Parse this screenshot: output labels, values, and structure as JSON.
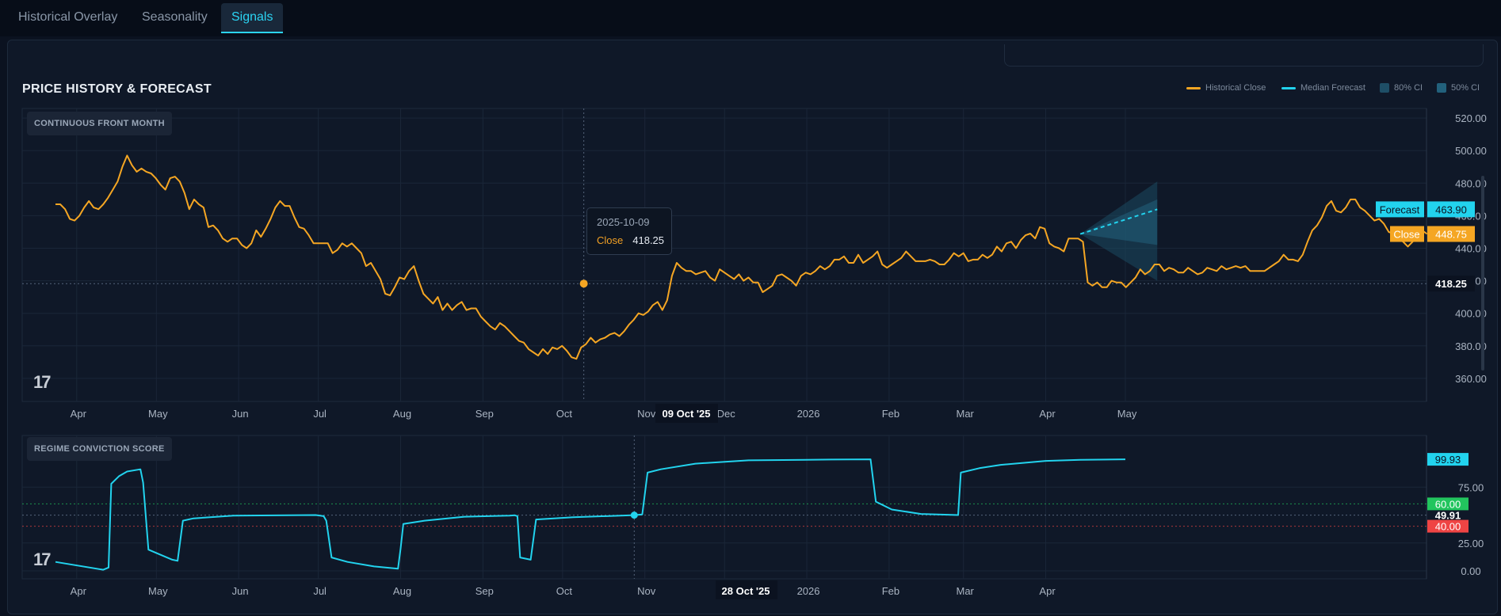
{
  "tabs": [
    {
      "label": "Historical Overlay",
      "active": false
    },
    {
      "label": "Seasonality",
      "active": false
    },
    {
      "label": "Signals",
      "active": true
    }
  ],
  "panel_title": "PRICE HISTORY & FORECAST",
  "legend": [
    {
      "label": "Historical Close",
      "color": "#f5a623",
      "kind": "line"
    },
    {
      "label": "Median Forecast",
      "color": "#22d3ee",
      "kind": "line"
    },
    {
      "label": "80% CI",
      "color": "#1e4e66",
      "kind": "box"
    },
    {
      "label": "50% CI",
      "color": "#22617c",
      "kind": "box"
    }
  ],
  "tooltip": {
    "date": "2025-10-09",
    "label": "Close",
    "value": "418.25"
  },
  "colors": {
    "close": "#f5a623",
    "forecast": "#22d3ee",
    "regime": "#22d3ee",
    "threshold_high": "#22c55e",
    "threshold_low": "#ef4444",
    "background": "#0f1828"
  },
  "chart_data": [
    {
      "type": "line",
      "title": "CONTINUOUS FRONT MONTH",
      "x_tick_labels": [
        "Apr",
        "May",
        "Jun",
        "Jul",
        "Aug",
        "Sep",
        "Oct",
        "Nov",
        "Dec",
        "2026",
        "Feb",
        "Mar",
        "Apr",
        "May"
      ],
      "y_tick_labels": [
        "360.00",
        "380.00",
        "400.00",
        "420.00",
        "440.00",
        "460.00",
        "480.00",
        "500.00",
        "520.00"
      ],
      "ylim": [
        355,
        522
      ],
      "crosshair": {
        "x_label": "09 Oct '25",
        "y_label": "418.25",
        "value": 418.25
      },
      "series": [
        {
          "name": "Historical Close",
          "x_start": "2025-03-24",
          "step_days": 1.8,
          "values": [
            467,
            467,
            464,
            458,
            457,
            460,
            465,
            469,
            465,
            464,
            467,
            471,
            476,
            481,
            490,
            497,
            491,
            487,
            489,
            487,
            486,
            483,
            479,
            476,
            483,
            484,
            481,
            474,
            464,
            470,
            467,
            465,
            453,
            454,
            451,
            446,
            444,
            446,
            446,
            442,
            440,
            443,
            451,
            447,
            452,
            458,
            465,
            469,
            466,
            466,
            459,
            453,
            452,
            448,
            443,
            443,
            443,
            443,
            437,
            439,
            443,
            441,
            443,
            440,
            437,
            429,
            431,
            426,
            421,
            412,
            411,
            416,
            422,
            421,
            426,
            429,
            420,
            412,
            409,
            406,
            410,
            402,
            406,
            402,
            405,
            407,
            402,
            403,
            403,
            398,
            395,
            392,
            390,
            394,
            392,
            389,
            386,
            383,
            382,
            378,
            376,
            374,
            378,
            375,
            379,
            378,
            380,
            377,
            373,
            372,
            379,
            381,
            385,
            382,
            384,
            385,
            387,
            388,
            386,
            389,
            393,
            396,
            400,
            399,
            401,
            405,
            407,
            402,
            408,
            423,
            431,
            428,
            426,
            426,
            424,
            425,
            426,
            422,
            420,
            427,
            425,
            423,
            421,
            424,
            420,
            422,
            419,
            419,
            413,
            415,
            417,
            423,
            424,
            422,
            420,
            417,
            423,
            425,
            424,
            426,
            429,
            427,
            429,
            433,
            433,
            435,
            431,
            431,
            436,
            431,
            433,
            435,
            438,
            430,
            428,
            430,
            432,
            434,
            438,
            435,
            432,
            432,
            432,
            433,
            432,
            430,
            430,
            433,
            437,
            435,
            437,
            432,
            433,
            433,
            436,
            434,
            436,
            441,
            438,
            443,
            444,
            440,
            445,
            448,
            449,
            446,
            453,
            452,
            443,
            441,
            440,
            438,
            446,
            446,
            446,
            444,
            419,
            417,
            419,
            416,
            416,
            420,
            419,
            419,
            416,
            419,
            422,
            427,
            424,
            426,
            430,
            430,
            426,
            428,
            427,
            425,
            425,
            428,
            426,
            424,
            425,
            428,
            427,
            426,
            429,
            427,
            428,
            429,
            428,
            429,
            426,
            426,
            426,
            426,
            428,
            430,
            432,
            436,
            433,
            433,
            432,
            436,
            444,
            451,
            454,
            459,
            466,
            469,
            463,
            462,
            465,
            470,
            470,
            465,
            463,
            460,
            457,
            458,
            455,
            450,
            449,
            446,
            444,
            441,
            444,
            448,
            451,
            448.75
          ]
        },
        {
          "name": "Median Forecast",
          "x_start": "2026-04-14",
          "values": [
            448.75,
            463.9
          ],
          "x_end": "2026-05-13",
          "ci80": {
            "upper": 481,
            "lower": 420
          },
          "ci50": {
            "upper": 470,
            "lower": 442
          }
        }
      ],
      "last_close_label": "Close",
      "last_close": "448.75",
      "forecast_label": "Forecast",
      "forecast_value": "463.90"
    },
    {
      "type": "line",
      "title": "REGIME CONVICTION SCORE",
      "x_tick_labels": [
        "Apr",
        "May",
        "Jun",
        "Jul",
        "Aug",
        "Sep",
        "Oct",
        "Nov",
        "Dec",
        "2026",
        "Feb",
        "Mar",
        "Apr"
      ],
      "y_tick_labels": [
        "0.00",
        "25.00",
        "75.00"
      ],
      "ylim": [
        -4,
        104
      ],
      "thresholds": {
        "high": "60.00",
        "low": "40.00"
      },
      "crosshair": {
        "x_label": "28 Oct '25",
        "y_label": "49.91",
        "value": 49.91
      },
      "latest_value": "99.93",
      "series": [
        {
          "name": "Regime Conviction Score",
          "points": [
            [
              "2025-03-24",
              8
            ],
            [
              "2025-04-11",
              1
            ],
            [
              "2025-04-13",
              3
            ],
            [
              "2025-04-14",
              78
            ],
            [
              "2025-04-17",
              85
            ],
            [
              "2025-04-20",
              89
            ],
            [
              "2025-04-25",
              91
            ],
            [
              "2025-04-26",
              79
            ],
            [
              "2025-04-28",
              19
            ],
            [
              "2025-05-07",
              10
            ],
            [
              "2025-05-09",
              9
            ],
            [
              "2025-05-11",
              45
            ],
            [
              "2025-05-15",
              47
            ],
            [
              "2025-05-30",
              49.5
            ],
            [
              "2025-06-30",
              50
            ],
            [
              "2025-07-03",
              49
            ],
            [
              "2025-07-04",
              45
            ],
            [
              "2025-07-06",
              12
            ],
            [
              "2025-07-12",
              8
            ],
            [
              "2025-07-22",
              4
            ],
            [
              "2025-07-31",
              2
            ],
            [
              "2025-08-01",
              20
            ],
            [
              "2025-08-02",
              42
            ],
            [
              "2025-08-10",
              45
            ],
            [
              "2025-08-25",
              48.5
            ],
            [
              "2025-09-11",
              49.5
            ],
            [
              "2025-09-13",
              49.8
            ],
            [
              "2025-09-14",
              49
            ],
            [
              "2025-09-15",
              12
            ],
            [
              "2025-09-19",
              10
            ],
            [
              "2025-09-21",
              46
            ],
            [
              "2025-10-05",
              48
            ],
            [
              "2025-10-28",
              49.91
            ],
            [
              "2025-10-31",
              50.5
            ],
            [
              "2025-11-02",
              88
            ],
            [
              "2025-11-07",
              91
            ],
            [
              "2025-11-20",
              96
            ],
            [
              "2025-12-10",
              99
            ],
            [
              "2026-01-10",
              99.7
            ],
            [
              "2026-01-25",
              99.9
            ],
            [
              "2026-01-27",
              62
            ],
            [
              "2026-02-02",
              55
            ],
            [
              "2026-02-13",
              51
            ],
            [
              "2026-02-27",
              50
            ],
            [
              "2026-02-28",
              88
            ],
            [
              "2026-03-07",
              92
            ],
            [
              "2026-03-15",
              95
            ],
            [
              "2026-04-01",
              98.5
            ],
            [
              "2026-04-14",
              99.5
            ],
            [
              "2026-05-01",
              99.93
            ]
          ]
        }
      ]
    }
  ]
}
